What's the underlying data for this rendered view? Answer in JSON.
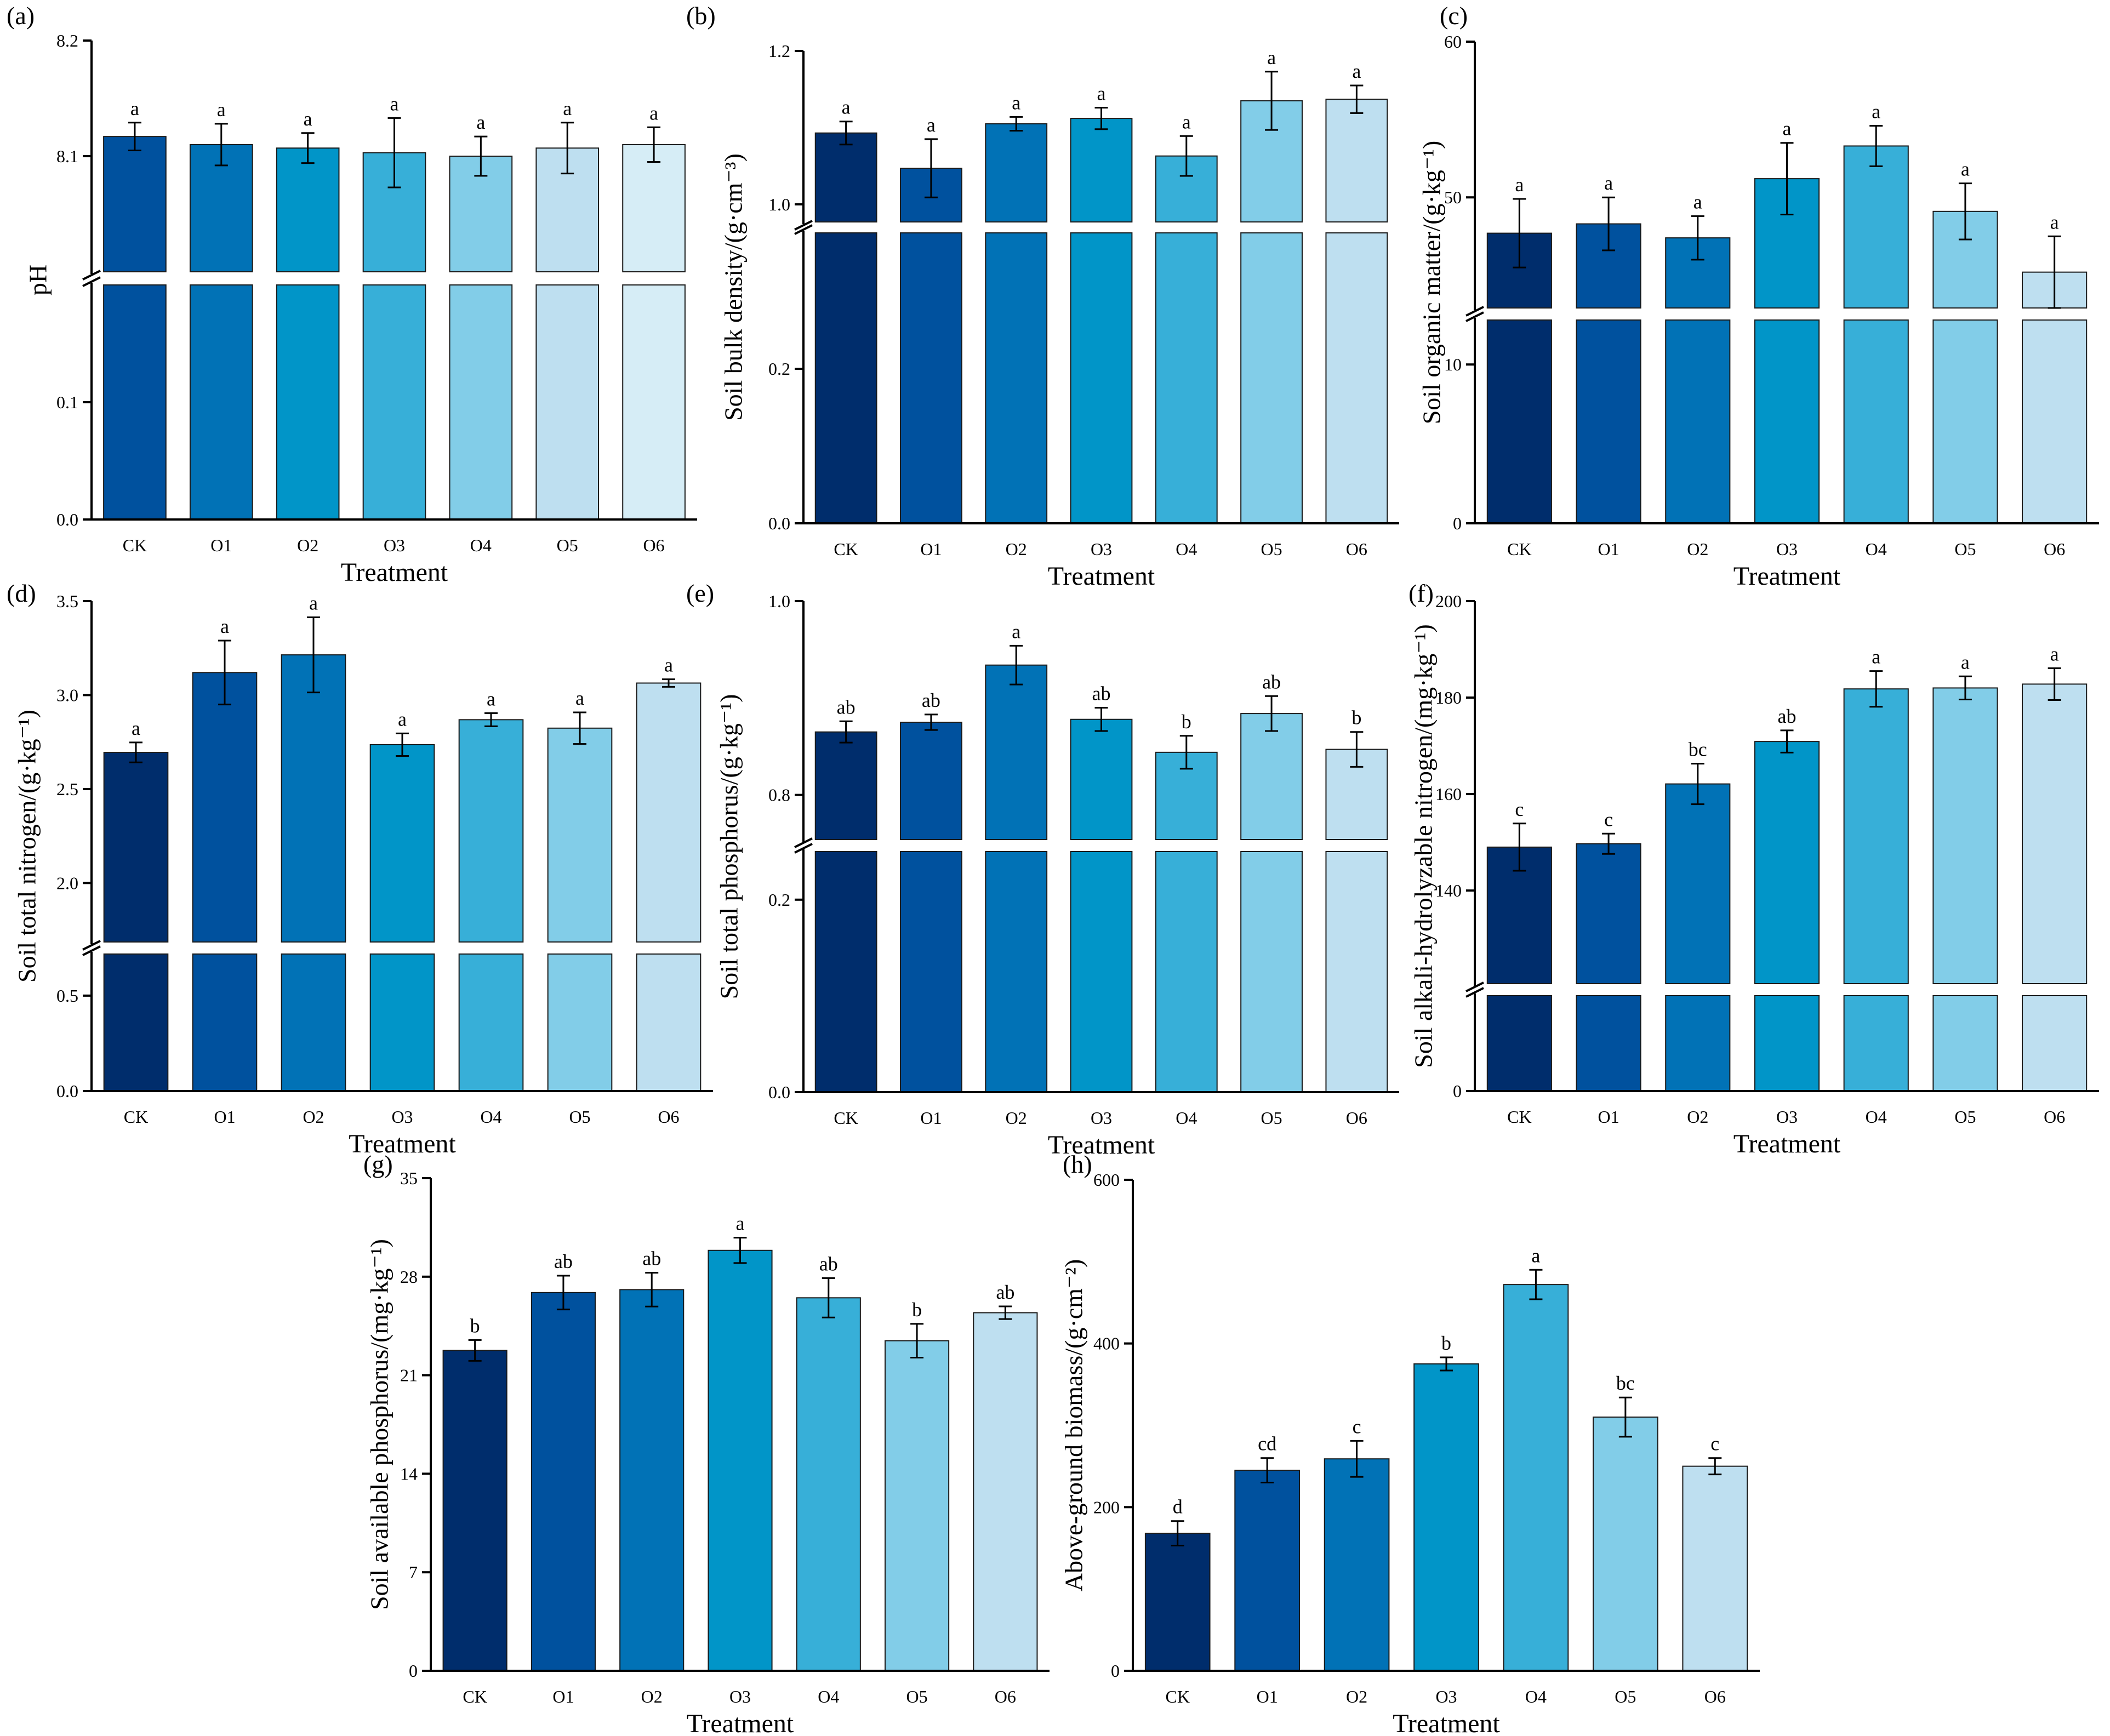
{
  "chart_data": {
    "type": "bar",
    "categories": [
      "CK",
      "O1",
      "O2",
      "O3",
      "O4",
      "O5",
      "O6"
    ],
    "palettes": {
      "shifted": [
        "#00519e",
        "#0172b6",
        "#0195c8",
        "#37afd8",
        "#82cde8",
        "#bedff0",
        "#d6edf6"
      ],
      "standard": [
        "#002d6c",
        "#00519e",
        "#0172b6",
        "#0195c8",
        "#37afd8",
        "#82cde8",
        "#bedff0"
      ]
    },
    "panels": [
      {
        "label": "(a)",
        "ylabel": "pH",
        "xlabel": "Treatment",
        "palette": "shifted",
        "values": [
          8.117,
          8.11,
          8.107,
          8.103,
          8.1,
          8.107,
          8.11
        ],
        "errors": [
          0.012,
          0.018,
          0.013,
          0.03,
          0.017,
          0.022,
          0.015
        ],
        "letters": [
          "a",
          "a",
          "a",
          "a",
          "a",
          "a",
          "a"
        ],
        "broken_axis": true,
        "ylim_lower": [
          0,
          0.2
        ],
        "ylim_upper": [
          8.0,
          8.2
        ],
        "yticks": [
          {
            "value": 0.0,
            "label": "0.0"
          },
          {
            "value": 0.1,
            "label": "0.1"
          },
          {
            "value": 8.1,
            "label": "8.1"
          },
          {
            "value": 8.2,
            "label": "8.2"
          }
        ]
      },
      {
        "label": "(b)",
        "ylabel": "Soil bulk density/(g·cm⁻³)",
        "xlabel": "Treatment",
        "palette": "standard",
        "values": [
          1.093,
          1.047,
          1.105,
          1.112,
          1.063,
          1.135,
          1.137
        ],
        "errors": [
          0.015,
          0.038,
          0.009,
          0.014,
          0.026,
          0.038,
          0.018
        ],
        "letters": [
          "a",
          "a",
          "a",
          "a",
          "a",
          "a",
          "a"
        ],
        "broken_axis": true,
        "ylim_lower": [
          0,
          0.376
        ],
        "ylim_upper": [
          0.977,
          1.2
        ],
        "yticks": [
          {
            "value": 0.0,
            "label": "0.0"
          },
          {
            "value": 0.2,
            "label": "0.2"
          },
          {
            "value": 1.0,
            "label": "1.0"
          },
          {
            "value": 1.2,
            "label": "1.2"
          }
        ]
      },
      {
        "label": "(c)",
        "ylabel": "Soil organic matter/(g·kg⁻¹)",
        "xlabel": "Treatment",
        "palette": "standard",
        "values": [
          47.7,
          48.3,
          47.4,
          51.2,
          53.3,
          49.1,
          45.2
        ],
        "errors": [
          2.2,
          1.7,
          1.4,
          2.3,
          1.3,
          1.8,
          2.3
        ],
        "letters": [
          "a",
          "a",
          "a",
          "a",
          "a",
          "a",
          "a"
        ],
        "broken_axis": true,
        "ylim_lower": [
          0,
          12.8
        ],
        "ylim_upper": [
          42.9,
          60
        ],
        "yticks": [
          {
            "value": 0,
            "label": "0"
          },
          {
            "value": 10,
            "label": "10"
          },
          {
            "value": 50,
            "label": "50"
          },
          {
            "value": 60,
            "label": "60"
          }
        ]
      },
      {
        "label": "(d)",
        "ylabel": "Soil total nitrogen/(g·kg⁻¹)",
        "xlabel": "Treatment",
        "palette": "standard",
        "values": [
          2.695,
          3.12,
          3.214,
          2.736,
          2.869,
          2.824,
          3.064
        ],
        "errors": [
          0.053,
          0.17,
          0.2,
          0.06,
          0.035,
          0.084,
          0.02
        ],
        "letters": [
          "a",
          "a",
          "a",
          "a",
          "a",
          "a",
          "a"
        ],
        "broken_axis": true,
        "ylim_lower": [
          0,
          0.718
        ],
        "ylim_upper": [
          1.686,
          3.5
        ],
        "yticks": [
          {
            "value": 0.0,
            "label": "0.0"
          },
          {
            "value": 0.5,
            "label": "0.5"
          },
          {
            "value": 2.0,
            "label": "2.0"
          },
          {
            "value": 2.5,
            "label": "2.5"
          },
          {
            "value": 3.0,
            "label": "3.0"
          },
          {
            "value": 3.5,
            "label": "3.5"
          }
        ]
      },
      {
        "label": "(e)",
        "ylabel": "Soil total phosphorus/(g·kg⁻¹)",
        "xlabel": "Treatment",
        "palette": "standard",
        "values": [
          0.865,
          0.875,
          0.934,
          0.878,
          0.844,
          0.884,
          0.847
        ],
        "errors": [
          0.011,
          0.008,
          0.02,
          0.012,
          0.017,
          0.018,
          0.018
        ],
        "letters": [
          "ab",
          "ab",
          "a",
          "ab",
          "b",
          "ab",
          "b"
        ],
        "broken_axis": true,
        "ylim_lower": [
          0,
          0.25
        ],
        "ylim_upper": [
          0.754,
          1.0
        ],
        "yticks": [
          {
            "value": 0.0,
            "label": "0.0"
          },
          {
            "value": 0.2,
            "label": "0.2"
          },
          {
            "value": 0.8,
            "label": "0.8"
          },
          {
            "value": 1.0,
            "label": "1.0"
          }
        ]
      },
      {
        "label": "(f)",
        "ylabel": "Soil alkali-hydrolyzable nitrogen/(mg·kg⁻¹)",
        "xlabel": "Treatment",
        "palette": "standard",
        "values": [
          149.0,
          149.7,
          162.1,
          170.9,
          181.8,
          182.0,
          182.8
        ],
        "errors": [
          4.9,
          2.1,
          4.2,
          2.3,
          3.7,
          2.4,
          3.3
        ],
        "letters": [
          "c",
          "c",
          "bc",
          "ab",
          "a",
          "a",
          "a"
        ],
        "broken_axis": true,
        "ylim_lower": [
          0,
          20
        ],
        "ylim_upper": [
          120.7,
          200
        ],
        "yticks": [
          {
            "value": 0,
            "label": "0"
          },
          {
            "value": 140,
            "label": "140"
          },
          {
            "value": 160,
            "label": "160"
          },
          {
            "value": 180,
            "label": "180"
          },
          {
            "value": 200,
            "label": "200"
          }
        ]
      },
      {
        "label": "(g)",
        "ylabel": "Soil available phosphorus/(mg·kg⁻¹)",
        "xlabel": "Treatment",
        "palette": "standard",
        "values": [
          22.76,
          26.87,
          27.08,
          29.87,
          26.5,
          23.45,
          25.44
        ],
        "errors": [
          0.74,
          1.2,
          1.2,
          0.9,
          1.4,
          1.2,
          0.45
        ],
        "letters": [
          "b",
          "ab",
          "ab",
          "a",
          "ab",
          "b",
          "ab"
        ],
        "broken_axis": false,
        "ylim": [
          0,
          35
        ],
        "yticks": [
          {
            "value": 0,
            "label": "0"
          },
          {
            "value": 7,
            "label": "7"
          },
          {
            "value": 14,
            "label": "14"
          },
          {
            "value": 21,
            "label": "21"
          },
          {
            "value": 28,
            "label": "28"
          },
          {
            "value": 35,
            "label": "35"
          }
        ]
      },
      {
        "label": "(h)",
        "ylabel": "Above-ground biomass/(g·cm⁻²)",
        "xlabel": "Treatment",
        "palette": "standard",
        "values": [
          168,
          245,
          259,
          375,
          472,
          310,
          250
        ],
        "errors": [
          15,
          15,
          22,
          8,
          18,
          24,
          10
        ],
        "letters": [
          "d",
          "cd",
          "c",
          "b",
          "a",
          "bc",
          "c"
        ],
        "broken_axis": false,
        "ylim": [
          0,
          600
        ],
        "yticks": [
          {
            "value": 0,
            "label": "0"
          },
          {
            "value": 200,
            "label": "200"
          },
          {
            "value": 400,
            "label": "400"
          },
          {
            "value": 600,
            "label": "600"
          }
        ]
      }
    ]
  }
}
